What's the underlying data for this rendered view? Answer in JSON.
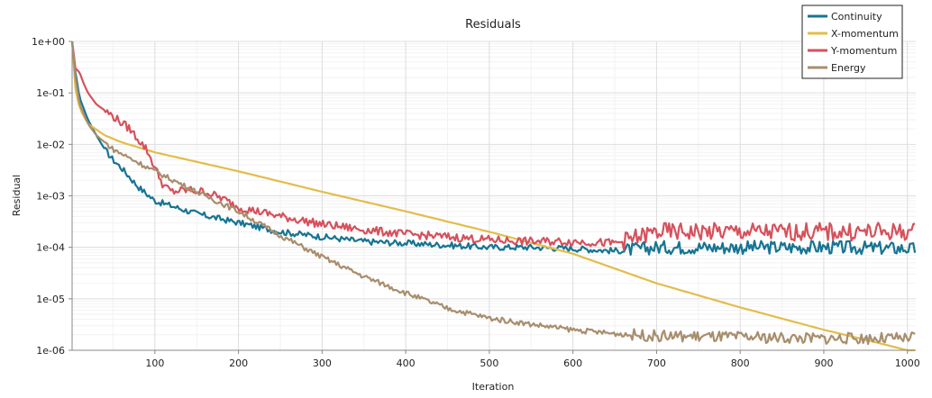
{
  "chart_data": {
    "type": "line",
    "title": "Residuals",
    "xlabel": "Iteration",
    "ylabel": "Residual",
    "x_scale": "linear",
    "y_scale": "log",
    "xlim": [
      1,
      1010
    ],
    "ylim": [
      1e-06,
      1
    ],
    "x_ticks": [
      100,
      200,
      300,
      400,
      500,
      600,
      700,
      800,
      900,
      1000
    ],
    "x_tick_labels": [
      "100",
      "200",
      "300",
      "400",
      "500",
      "600",
      "700",
      "800",
      "900",
      "1000"
    ],
    "y_ticks": [
      1,
      0.1,
      0.01,
      0.001,
      0.0001,
      1e-05,
      1e-06
    ],
    "y_tick_labels": [
      "1e+00",
      "1e-01",
      "1e-02",
      "1e-03",
      "1e-04",
      "1e-05",
      "1e-06"
    ],
    "grid": true,
    "legend_position": "top-right",
    "series": [
      {
        "name": "Continuity",
        "color": "#177493",
        "noise": 0.06,
        "points": [
          [
            1,
            1.0
          ],
          [
            5,
            0.25
          ],
          [
            10,
            0.08
          ],
          [
            20,
            0.03
          ],
          [
            30,
            0.015
          ],
          [
            40,
            0.008
          ],
          [
            50,
            0.005
          ],
          [
            60,
            0.0035
          ],
          [
            80,
            0.0015
          ],
          [
            100,
            0.0008
          ],
          [
            150,
            0.00045
          ],
          [
            200,
            0.0003
          ],
          [
            250,
            0.0002
          ],
          [
            300,
            0.00016
          ],
          [
            350,
            0.00013
          ],
          [
            400,
            0.00012
          ],
          [
            450,
            0.00011
          ],
          [
            500,
            0.0001
          ],
          [
            550,
            0.0001
          ],
          [
            600,
            9.5e-05
          ],
          [
            650,
            8.5e-05
          ],
          [
            700,
            0.0001
          ],
          [
            800,
            0.0001
          ],
          [
            900,
            0.0001
          ],
          [
            1000,
            9.5e-05
          ],
          [
            1010,
            9e-05
          ]
        ]
      },
      {
        "name": "X-momentum",
        "color": "#e2bd4a",
        "noise": 0,
        "points": [
          [
            1,
            1.0
          ],
          [
            5,
            0.12
          ],
          [
            10,
            0.05
          ],
          [
            20,
            0.025
          ],
          [
            40,
            0.015
          ],
          [
            60,
            0.011
          ],
          [
            100,
            0.007
          ],
          [
            200,
            0.003
          ],
          [
            300,
            0.0012
          ],
          [
            400,
            0.0005
          ],
          [
            500,
            0.0002
          ],
          [
            600,
            7.5e-05
          ],
          [
            700,
            2e-05
          ],
          [
            800,
            6.8e-06
          ],
          [
            900,
            2.5e-06
          ],
          [
            950,
            1.6e-06
          ],
          [
            1000,
            1e-06
          ],
          [
            1010,
            9.5e-07
          ]
        ]
      },
      {
        "name": "Y-momentum",
        "color": "#d6515c",
        "noise": 0.08,
        "points": [
          [
            1,
            1.0
          ],
          [
            5,
            0.3
          ],
          [
            10,
            0.25
          ],
          [
            15,
            0.15
          ],
          [
            20,
            0.1
          ],
          [
            30,
            0.06
          ],
          [
            50,
            0.035
          ],
          [
            70,
            0.02
          ],
          [
            90,
            0.008
          ],
          [
            110,
            0.0016
          ],
          [
            120,
            0.0012
          ],
          [
            140,
            0.0013
          ],
          [
            160,
            0.0012
          ],
          [
            180,
            0.0009
          ],
          [
            200,
            0.0006
          ],
          [
            250,
            0.0004
          ],
          [
            300,
            0.00028
          ],
          [
            350,
            0.00022
          ],
          [
            400,
            0.00018
          ],
          [
            450,
            0.00016
          ],
          [
            500,
            0.00014
          ],
          [
            550,
            0.00013
          ],
          [
            600,
            0.00013
          ],
          [
            650,
            0.00012
          ],
          [
            680,
            0.00016
          ],
          [
            700,
            0.0002
          ],
          [
            800,
            0.0002
          ],
          [
            900,
            0.0002
          ],
          [
            1000,
            0.0002
          ],
          [
            1010,
            0.0002
          ]
        ]
      },
      {
        "name": "Energy",
        "color": "#a88e6d",
        "noise": 0.05,
        "points": [
          [
            1,
            1.0
          ],
          [
            5,
            0.2
          ],
          [
            10,
            0.06
          ],
          [
            20,
            0.025
          ],
          [
            30,
            0.015
          ],
          [
            50,
            0.008
          ],
          [
            100,
            0.003
          ],
          [
            150,
            0.0012
          ],
          [
            200,
            0.0005
          ],
          [
            250,
            0.00017
          ],
          [
            300,
            6.5e-05
          ],
          [
            350,
            2.7e-05
          ],
          [
            400,
            1.3e-05
          ],
          [
            450,
            6.5e-06
          ],
          [
            500,
            4.2e-06
          ],
          [
            550,
            3.2e-06
          ],
          [
            600,
            2.5e-06
          ],
          [
            650,
            2.1e-06
          ],
          [
            700,
            1.9e-06
          ],
          [
            800,
            1.8e-06
          ],
          [
            900,
            1.7e-06
          ],
          [
            1000,
            1.7e-06
          ],
          [
            1010,
            1.8e-06
          ]
        ]
      }
    ]
  }
}
